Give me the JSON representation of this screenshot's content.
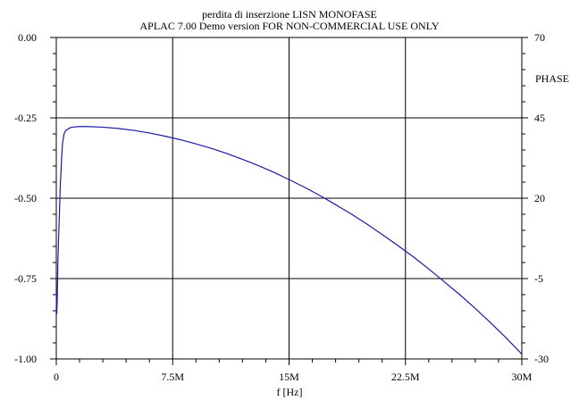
{
  "chart_data": {
    "type": "line",
    "title": "perdita di inserzione LISN MONOFASE",
    "subtitle": "APLAC 7.00 Demo version FOR NON-COMMERCIAL USE ONLY",
    "xlabel": "f [Hz]",
    "ylabel_right": "PHASE",
    "xlim": [
      0,
      30000000
    ],
    "ylim": [
      -1.0,
      0.0
    ],
    "ylim_right": [
      -30,
      70
    ],
    "x_ticks": [
      0,
      7500000,
      15000000,
      22500000,
      30000000
    ],
    "x_tick_labels": [
      "0",
      "7.5M",
      "15M",
      "22.5M",
      "30M"
    ],
    "y_ticks": [
      0.0,
      -0.25,
      -0.5,
      -0.75,
      -1.0
    ],
    "y_tick_labels": [
      "0.00",
      "-0.25",
      "-0.50",
      "-0.75",
      "-1.00"
    ],
    "y2_ticks": [
      70,
      45,
      20,
      -5,
      -30
    ],
    "y2_tick_labels": [
      "70",
      "45",
      "20",
      "-5",
      "-30"
    ],
    "grid": true,
    "line_color": "#1a1aa6",
    "series": [
      {
        "x": [
          0,
          30000,
          60000,
          100000,
          150000,
          200000,
          250000,
          300000,
          350000,
          400000,
          500000,
          600000,
          800000,
          1000000,
          1500000,
          2000000,
          3000000,
          4000000,
          5000000,
          6000000,
          7000000,
          8000000,
          9000000,
          10000000,
          11000000,
          12000000,
          13000000,
          14000000,
          15000000,
          16000000,
          17000000,
          18000000,
          19000000,
          20000000,
          21000000,
          22000000,
          23000000,
          24000000,
          25000000,
          26000000,
          27000000,
          28000000,
          29000000,
          30000000
        ],
        "y": [
          -0.79,
          -0.86,
          -0.82,
          -0.7,
          -0.62,
          -0.55,
          -0.47,
          -0.42,
          -0.37,
          -0.33,
          -0.3,
          -0.29,
          -0.283,
          -0.279,
          -0.277,
          -0.277,
          -0.279,
          -0.283,
          -0.289,
          -0.297,
          -0.307,
          -0.318,
          -0.331,
          -0.345,
          -0.361,
          -0.379,
          -0.398,
          -0.419,
          -0.442,
          -0.466,
          -0.492,
          -0.52,
          -0.549,
          -0.58,
          -0.613,
          -0.647,
          -0.682,
          -0.72,
          -0.76,
          -0.8,
          -0.843,
          -0.888,
          -0.935,
          -0.985
        ]
      }
    ]
  }
}
